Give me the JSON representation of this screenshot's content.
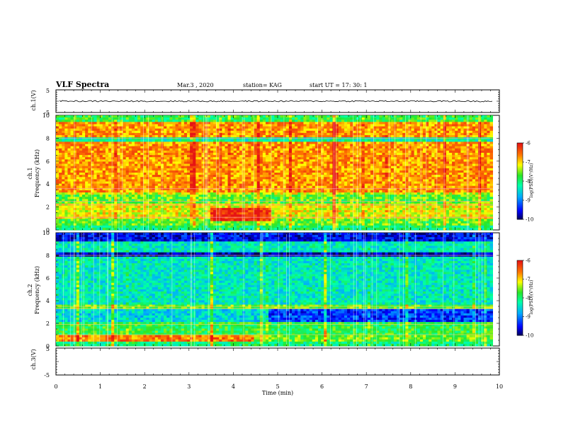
{
  "header": {
    "title": "VLF Spectra",
    "date": "Mar.3  , 2020",
    "station": "station= KAG",
    "start": "start  UT  =   17: 30: 1"
  },
  "chart_data": [
    {
      "type": "line",
      "panel": "ch1-waveform",
      "ylabel": "ch.1(V)",
      "ylim": [
        -5,
        5
      ],
      "yticks": [
        "5",
        "-5"
      ],
      "xlim": [
        0,
        10
      ],
      "series": [
        {
          "values_description_free": true,
          "level": 0
        }
      ]
    },
    {
      "type": "heatmap",
      "panel": "ch1-spectrogram",
      "ylabel": "ch.1\nFrequency (kHz)",
      "ylabel_line1": "ch.1",
      "ylabel_line2": "Frequency (kHz)",
      "ylim": [
        0,
        10
      ],
      "yticks": [
        "0",
        "2",
        "4",
        "6",
        "8",
        "10"
      ],
      "xlim": [
        0,
        9.85
      ],
      "colorbar": {
        "label": "log(PSD)(V²/Hz)",
        "min": -10,
        "max": -6,
        "ticks": [
          "-6",
          "-7",
          "-8",
          "-9",
          "-10"
        ]
      }
    },
    {
      "type": "heatmap",
      "panel": "ch2-spectrogram",
      "ylabel_line1": "ch.2",
      "ylabel_line2": "Frequency (kHz)",
      "ylim": [
        0,
        10
      ],
      "yticks": [
        "0",
        "2",
        "4",
        "6",
        "8",
        "10"
      ],
      "xlim": [
        0,
        9.85
      ],
      "colorbar": {
        "label": "log(PSD)(V²/Hz)",
        "min": -10,
        "max": -6,
        "ticks": [
          "-6",
          "-7",
          "-8",
          "-9",
          "-10"
        ]
      }
    },
    {
      "type": "line",
      "panel": "ch3-waveform",
      "ylabel": "ch.3(V)",
      "ylim": [
        -5,
        5
      ],
      "yticks": [
        "5",
        "-5"
      ],
      "xlim": [
        0,
        10
      ]
    }
  ],
  "xaxis": {
    "label": "Time  (min)",
    "ticks": [
      "0",
      "1",
      "2",
      "3",
      "4",
      "5",
      "6",
      "7",
      "8",
      "9",
      "10"
    ]
  }
}
